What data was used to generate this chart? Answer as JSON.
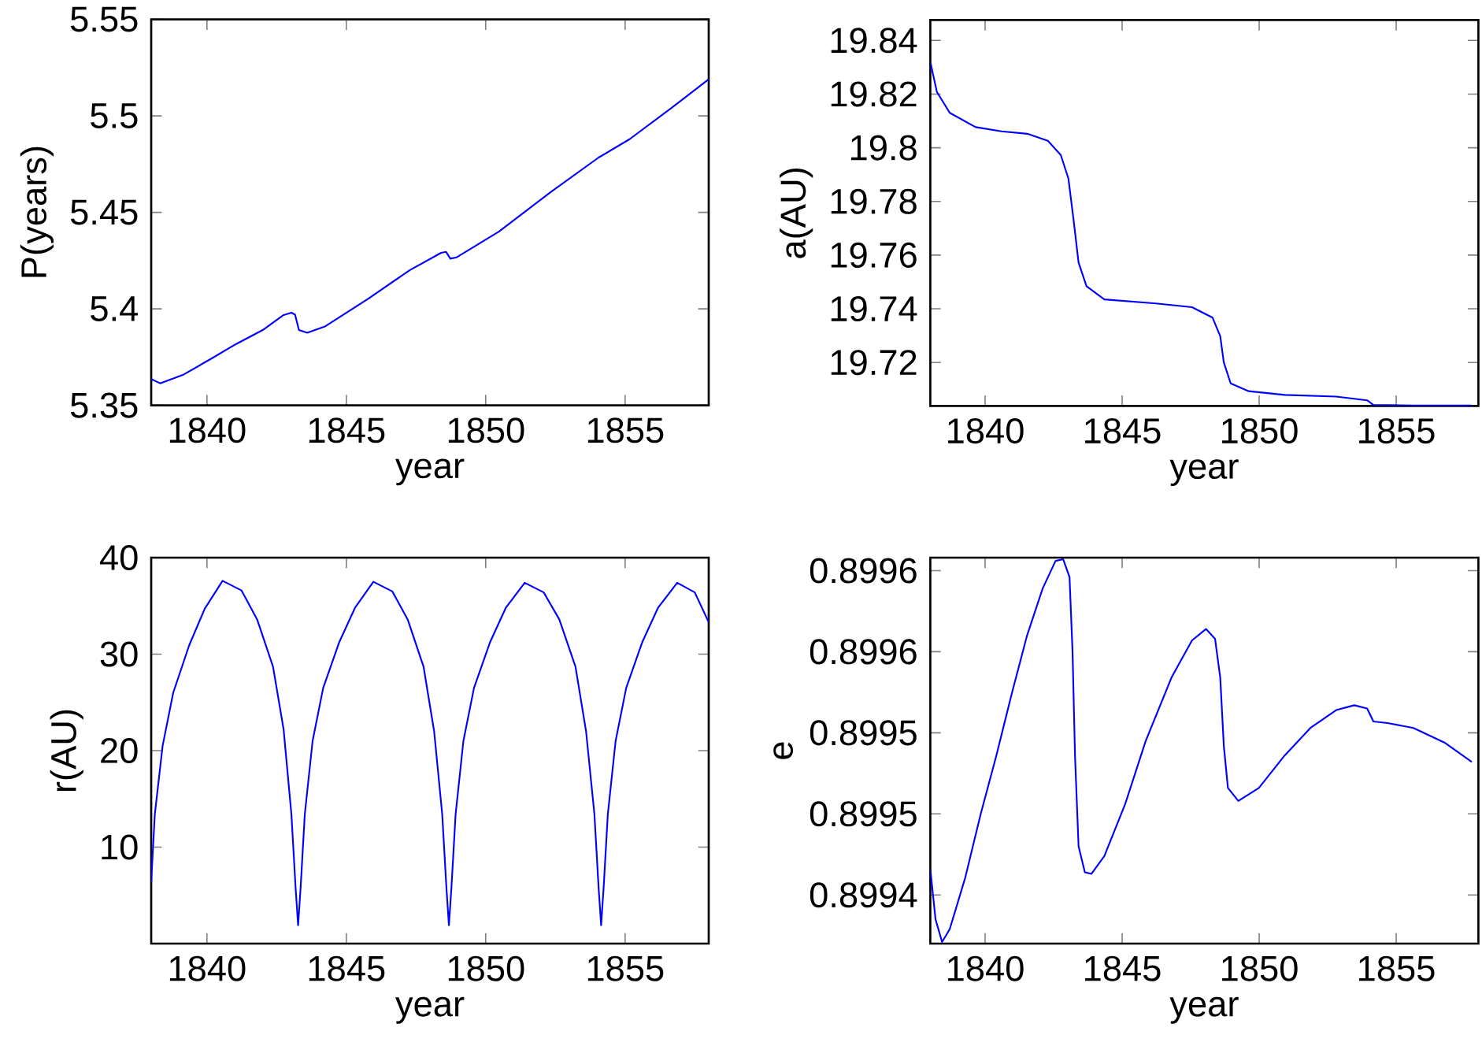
{
  "chart_data": [
    {
      "type": "line",
      "xlabel": "year",
      "ylabel": "P(years)",
      "xlim": [
        1838,
        1858
      ],
      "ylim": [
        5.35,
        5.55
      ],
      "xticks": [
        1840,
        1845,
        1850,
        1855
      ],
      "yticks": [
        5.35,
        5.4,
        5.45,
        5.5,
        5.55
      ],
      "x": [
        1838,
        1838.32,
        1839.17,
        1840.1,
        1841.05,
        1842.0,
        1842.75,
        1843.03,
        1843.16,
        1843.3,
        1843.6,
        1844.25,
        1845.76,
        1847.27,
        1848.4,
        1848.58,
        1848.73,
        1848.96,
        1850.47,
        1852.35,
        1854.05,
        1855.17,
        1856.68,
        1858
      ],
      "series": [
        {
          "color": "#0000ff",
          "values": [
            5.3636,
            5.3614,
            5.366,
            5.3737,
            5.3818,
            5.389,
            5.3968,
            5.398,
            5.397,
            5.389,
            5.3876,
            5.391,
            5.405,
            5.42,
            5.429,
            5.4295,
            5.426,
            5.4267,
            5.44,
            5.4607,
            5.4784,
            5.488,
            5.5043,
            5.519
          ]
        }
      ]
    },
    {
      "type": "line",
      "xlabel": "year",
      "ylabel": "a(AU)",
      "xlim": [
        1838,
        1858
      ],
      "ylim": [
        19.7038,
        19.8476
      ],
      "xticks": [
        1840,
        1845,
        1850,
        1855
      ],
      "yticks": [
        19.72,
        19.74,
        19.76,
        19.78,
        19.8,
        19.82,
        19.84
      ],
      "x": [
        1838,
        1838.24,
        1838.71,
        1839.65,
        1840.6,
        1841.54,
        1842.29,
        1842.76,
        1843.04,
        1843.23,
        1843.41,
        1843.7,
        1844.35,
        1846.23,
        1847.55,
        1848.3,
        1848.58,
        1848.71,
        1848.96,
        1849.62,
        1850.93,
        1852.81,
        1853.94,
        1854.17,
        1855.6,
        1857.76
      ],
      "series": [
        {
          "color": "#0000ff",
          "values": [
            19.832,
            19.8208,
            19.813,
            19.8077,
            19.8061,
            19.8052,
            19.8026,
            19.7973,
            19.7885,
            19.7729,
            19.7572,
            19.7484,
            19.7435,
            19.742,
            19.7406,
            19.7367,
            19.7298,
            19.72,
            19.7122,
            19.7093,
            19.7079,
            19.7073,
            19.7059,
            19.7042,
            19.704,
            19.704
          ]
        }
      ]
    },
    {
      "type": "line",
      "xlabel": "year",
      "ylabel": "r(AU)",
      "xlim": [
        1838,
        1858
      ],
      "ylim": [
        0,
        40
      ],
      "xticks": [
        1840,
        1845,
        1850,
        1855
      ],
      "yticks": [
        10,
        20,
        30,
        40
      ],
      "x": [
        1838,
        1838.13,
        1838.41,
        1838.79,
        1839.36,
        1839.92,
        1840.56,
        1841.24,
        1841.8,
        1842.37,
        1842.75,
        1843.03,
        1843.18,
        1843.27,
        1843.36,
        1843.51,
        1843.79,
        1844.17,
        1844.74,
        1845.31,
        1845.97,
        1846.65,
        1847.2,
        1847.77,
        1848.15,
        1848.44,
        1848.59,
        1848.68,
        1848.77,
        1848.92,
        1849.2,
        1849.58,
        1850.15,
        1850.72,
        1851.4,
        1852.08,
        1852.64,
        1853.22,
        1853.6,
        1853.9,
        1854.05,
        1854.14,
        1854.23,
        1854.38,
        1854.66,
        1855.04,
        1855.61,
        1856.18,
        1856.87,
        1857.5,
        1858
      ],
      "series": [
        {
          "color": "#0000ff",
          "values": [
            6.4,
            13.4,
            20.5,
            26.0,
            30.9,
            34.7,
            37.6,
            36.6,
            33.6,
            28.7,
            22.2,
            13.4,
            5.8,
            1.9,
            5.8,
            13.4,
            21.0,
            26.5,
            31.2,
            34.8,
            37.5,
            36.5,
            33.6,
            28.7,
            22.0,
            13.4,
            5.8,
            1.9,
            5.8,
            13.4,
            21.0,
            26.5,
            31.2,
            34.8,
            37.4,
            36.4,
            33.6,
            28.7,
            22.0,
            13.4,
            5.8,
            1.9,
            5.8,
            13.4,
            21.0,
            26.5,
            31.2,
            34.8,
            37.4,
            36.4,
            33.3
          ]
        }
      ]
    },
    {
      "type": "line",
      "xlabel": "year",
      "ylabel": "e",
      "xlim": [
        1838,
        1858
      ],
      "ylim": [
        0.89937,
        0.899608
      ],
      "xticks": [
        1840,
        1845,
        1850,
        1855
      ],
      "yticks": [
        {
          "value": 0.8994,
          "label": "0.8994"
        },
        {
          "value": 0.89945,
          "label": "0.8995"
        },
        {
          "value": 0.8995,
          "label": "0.8995"
        },
        {
          "value": 0.89955,
          "label": "0.8996"
        },
        {
          "value": 0.8996,
          "label": "0.8996"
        }
      ],
      "x": [
        1838,
        1838.19,
        1838.43,
        1838.71,
        1839.28,
        1839.84,
        1840.41,
        1840.97,
        1841.53,
        1842.1,
        1842.57,
        1842.85,
        1843.08,
        1843.19,
        1843.28,
        1843.41,
        1843.64,
        1843.88,
        1844.35,
        1845.11,
        1845.86,
        1846.8,
        1847.55,
        1848.06,
        1848.39,
        1848.58,
        1848.71,
        1848.86,
        1849.24,
        1849.99,
        1850.93,
        1851.87,
        1852.81,
        1853.47,
        1853.94,
        1854.17,
        1854.69,
        1855.63,
        1856.76,
        1857.76
      ],
      "series": [
        {
          "color": "#0000ff",
          "values": [
            0.899416,
            0.899385,
            0.899371,
            0.899379,
            0.899411,
            0.89945,
            0.899486,
            0.899524,
            0.89956,
            0.899589,
            0.899606,
            0.899607,
            0.899596,
            0.89955,
            0.899486,
            0.89943,
            0.899414,
            0.899413,
            0.899424,
            0.899456,
            0.899495,
            0.899534,
            0.899557,
            0.899564,
            0.899558,
            0.899534,
            0.899492,
            0.899466,
            0.899458,
            0.899466,
            0.899486,
            0.899503,
            0.899514,
            0.899517,
            0.899515,
            0.899507,
            0.899506,
            0.899503,
            0.899494,
            0.899482
          ]
        }
      ]
    }
  ]
}
